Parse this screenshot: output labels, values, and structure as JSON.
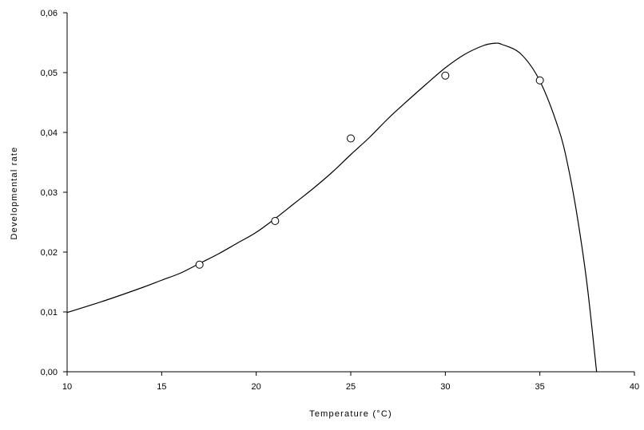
{
  "chart_data": {
    "type": "scatter",
    "title": "",
    "xlabel": "Temperature (°C)",
    "ylabel": "Developmental rate",
    "xlim": [
      10,
      40
    ],
    "ylim": [
      0,
      0.06
    ],
    "x_ticks": [
      10,
      15,
      20,
      25,
      30,
      35,
      40
    ],
    "x_tick_labels": [
      "10",
      "15",
      "20",
      "25",
      "30",
      "35",
      "40"
    ],
    "y_ticks": [
      0,
      0.01,
      0.02,
      0.03,
      0.04,
      0.05,
      0.06
    ],
    "y_tick_labels": [
      "0,00",
      "0,01",
      "0,02",
      "0,03",
      "0,04",
      "0,05",
      "0,06"
    ],
    "grid": false,
    "legend": "none",
    "series": [
      {
        "kind": "points",
        "marker": "open-circle",
        "x": [
          17,
          21,
          25,
          30,
          35
        ],
        "y": [
          0.0179,
          0.0252,
          0.039,
          0.0495,
          0.0487
        ]
      },
      {
        "kind": "curve",
        "x": [
          10,
          12,
          14,
          15,
          16,
          17,
          18,
          19,
          20,
          21,
          22,
          23,
          24,
          25,
          26,
          27,
          28,
          29,
          30,
          31,
          32,
          32.6,
          33,
          34,
          35,
          36,
          36.5,
          37,
          37.5,
          38
        ],
        "y": [
          0.0099,
          0.0119,
          0.0141,
          0.0153,
          0.0165,
          0.0181,
          0.0197,
          0.0215,
          0.0233,
          0.0256,
          0.0281,
          0.0306,
          0.0333,
          0.0363,
          0.0392,
          0.0424,
          0.0453,
          0.0481,
          0.0508,
          0.053,
          0.0545,
          0.0549,
          0.0547,
          0.0531,
          0.0486,
          0.0405,
          0.0342,
          0.0255,
          0.0145,
          0.0
        ]
      }
    ]
  }
}
